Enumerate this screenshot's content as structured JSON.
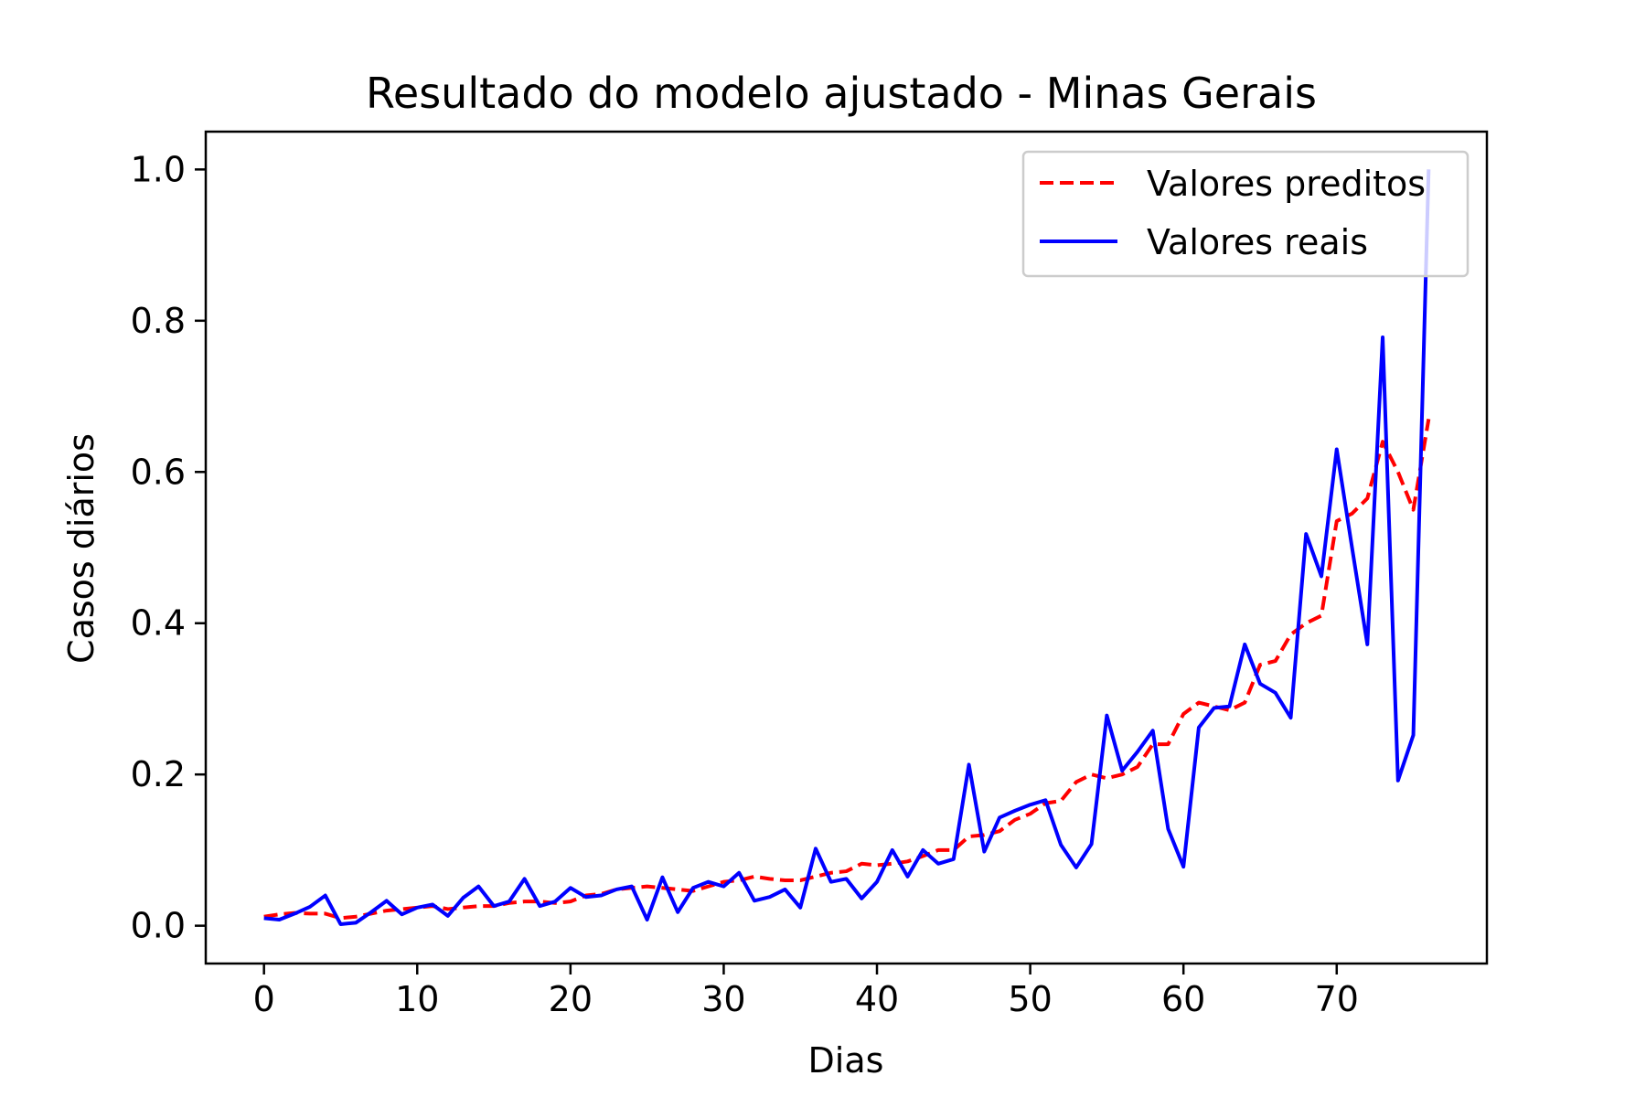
{
  "chart_data": {
    "type": "line",
    "title": "Resultado do modelo ajustado - Minas Gerais",
    "xlabel": "Dias",
    "ylabel": "Casos diários",
    "xlim": [
      -3.8,
      79.8
    ],
    "ylim": [
      -0.05,
      1.05
    ],
    "x_ticks": [
      0,
      10,
      20,
      30,
      40,
      50,
      60,
      70
    ],
    "y_ticks": [
      0.0,
      0.2,
      0.4,
      0.6,
      0.8,
      1.0
    ],
    "x_tick_labels": [
      "0",
      "10",
      "20",
      "30",
      "40",
      "50",
      "60",
      "70"
    ],
    "y_tick_labels": [
      "0.0",
      "0.2",
      "0.4",
      "0.6",
      "0.8",
      "1.0"
    ],
    "grid": false,
    "legend_position": "top-right",
    "series": [
      {
        "name": "Valores preditos",
        "color": "#ff0000",
        "style": "dashed",
        "x": [
          0,
          1,
          2,
          3,
          4,
          5,
          6,
          7,
          8,
          9,
          10,
          11,
          12,
          13,
          14,
          15,
          16,
          17,
          18,
          19,
          20,
          21,
          22,
          23,
          24,
          25,
          26,
          27,
          28,
          29,
          30,
          31,
          32,
          33,
          34,
          35,
          36,
          37,
          38,
          39,
          40,
          41,
          42,
          43,
          44,
          45,
          46,
          47,
          48,
          49,
          50,
          51,
          52,
          53,
          54,
          55,
          56,
          57,
          58,
          59,
          60,
          61,
          62,
          63,
          64,
          65,
          66,
          67,
          68,
          69,
          70,
          71,
          72,
          73,
          74,
          75,
          76
        ],
        "y": [
          0.012,
          0.015,
          0.017,
          0.016,
          0.016,
          0.01,
          0.012,
          0.016,
          0.02,
          0.022,
          0.024,
          0.026,
          0.022,
          0.024,
          0.026,
          0.026,
          0.03,
          0.032,
          0.032,
          0.03,
          0.032,
          0.04,
          0.042,
          0.048,
          0.05,
          0.052,
          0.05,
          0.048,
          0.046,
          0.052,
          0.058,
          0.06,
          0.065,
          0.062,
          0.06,
          0.06,
          0.065,
          0.07,
          0.072,
          0.082,
          0.08,
          0.082,
          0.085,
          0.092,
          0.1,
          0.1,
          0.118,
          0.12,
          0.125,
          0.14,
          0.148,
          0.162,
          0.165,
          0.19,
          0.2,
          0.195,
          0.2,
          0.21,
          0.24,
          0.24,
          0.28,
          0.295,
          0.29,
          0.285,
          0.295,
          0.345,
          0.35,
          0.385,
          0.4,
          0.41,
          0.535,
          0.545,
          0.565,
          0.64,
          0.6,
          0.55,
          0.67
        ]
      },
      {
        "name": "Valores reais",
        "color": "#0000ff",
        "style": "solid",
        "x": [
          0,
          1,
          2,
          3,
          4,
          5,
          6,
          7,
          8,
          9,
          10,
          11,
          12,
          13,
          14,
          15,
          16,
          17,
          18,
          19,
          20,
          21,
          22,
          23,
          24,
          25,
          26,
          27,
          28,
          29,
          30,
          31,
          32,
          33,
          34,
          35,
          36,
          37,
          38,
          39,
          40,
          41,
          42,
          43,
          44,
          45,
          46,
          47,
          48,
          49,
          50,
          51,
          52,
          53,
          54,
          55,
          56,
          57,
          58,
          59,
          60,
          61,
          62,
          63,
          64,
          65,
          66,
          67,
          68,
          69,
          70,
          71,
          72,
          73,
          74,
          75,
          76
        ],
        "y": [
          0.01,
          0.008,
          0.016,
          0.025,
          0.04,
          0.002,
          0.004,
          0.018,
          0.033,
          0.015,
          0.024,
          0.028,
          0.013,
          0.037,
          0.052,
          0.026,
          0.032,
          0.062,
          0.026,
          0.032,
          0.05,
          0.038,
          0.04,
          0.048,
          0.052,
          0.008,
          0.064,
          0.018,
          0.05,
          0.058,
          0.052,
          0.07,
          0.033,
          0.038,
          0.048,
          0.024,
          0.102,
          0.058,
          0.062,
          0.036,
          0.058,
          0.1,
          0.065,
          0.1,
          0.082,
          0.088,
          0.213,
          0.098,
          0.143,
          0.152,
          0.16,
          0.166,
          0.107,
          0.077,
          0.108,
          0.278,
          0.205,
          0.23,
          0.258,
          0.128,
          0.078,
          0.262,
          0.288,
          0.29,
          0.372,
          0.32,
          0.308,
          0.275,
          0.518,
          0.462,
          0.63,
          0.5,
          0.372,
          0.778,
          0.192,
          0.252,
          1.0
        ]
      }
    ]
  }
}
